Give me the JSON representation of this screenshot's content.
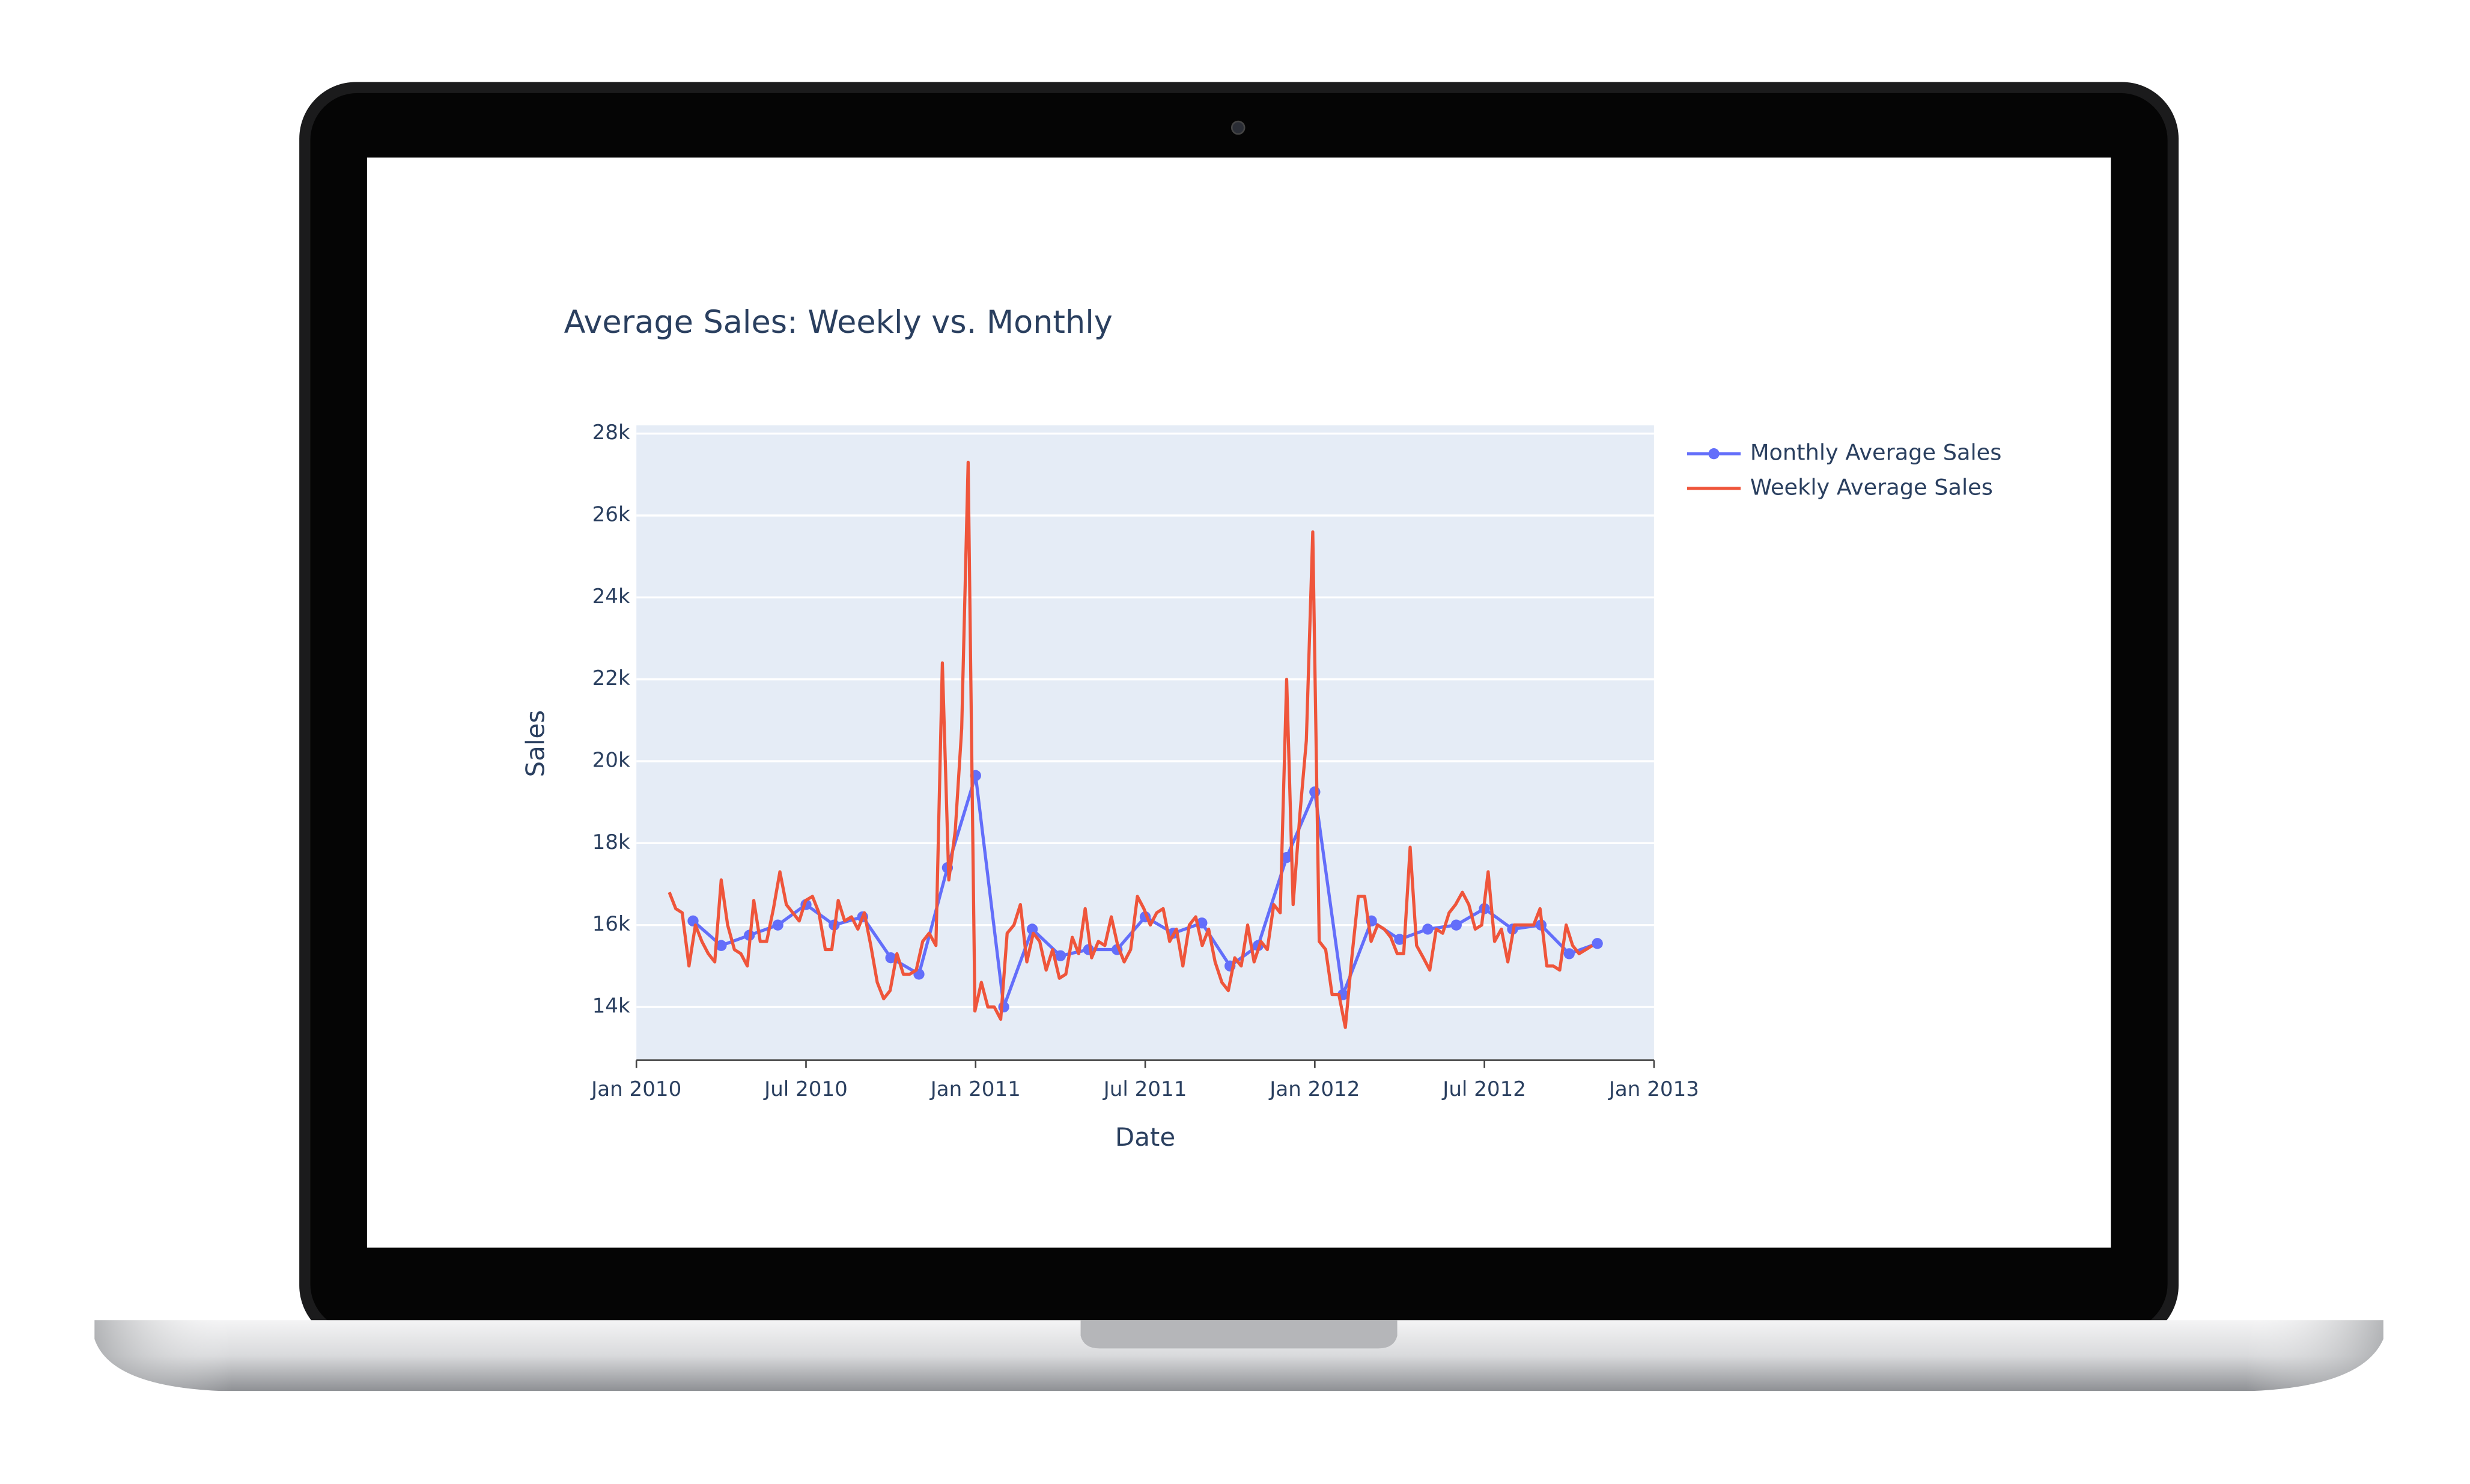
{
  "chart_data": {
    "type": "line",
    "title": "Average Sales: Weekly vs. Monthly",
    "x_label": "Date",
    "y_label": "Sales",
    "xlim": [
      2010,
      2013
    ],
    "xticks": [
      {
        "value": 2010,
        "label": "Jan 2010"
      },
      {
        "value": 2010.5,
        "label": "Jul 2010"
      },
      {
        "value": 2011,
        "label": "Jan 2011"
      },
      {
        "value": 2011.5,
        "label": "Jul 2011"
      },
      {
        "value": 2012,
        "label": "Jan 2012"
      },
      {
        "value": 2012.5,
        "label": "Jul 2012"
      },
      {
        "value": 2013,
        "label": "Jan 2013"
      }
    ],
    "ylim": [
      12700,
      28200
    ],
    "yticks": [
      {
        "value": 14000,
        "label": "14k"
      },
      {
        "value": 16000,
        "label": "16k"
      },
      {
        "value": 18000,
        "label": "18k"
      },
      {
        "value": 20000,
        "label": "20k"
      },
      {
        "value": 22000,
        "label": "22k"
      },
      {
        "value": 24000,
        "label": "24k"
      },
      {
        "value": 26000,
        "label": "26k"
      },
      {
        "value": 28000,
        "label": "28k"
      }
    ],
    "grid": true,
    "legend": "upper right",
    "series": [
      {
        "name": "Monthly Average Sales",
        "color": "#636efa",
        "markers": true,
        "x": [
          2010.167,
          2010.25,
          2010.333,
          2010.417,
          2010.5,
          2010.583,
          2010.667,
          2010.75,
          2010.833,
          2010.917,
          2011,
          2011.083,
          2011.167,
          2011.25,
          2011.333,
          2011.417,
          2011.5,
          2011.583,
          2011.667,
          2011.75,
          2011.833,
          2011.917,
          2012,
          2012.083,
          2012.167,
          2012.25,
          2012.333,
          2012.417,
          2012.5,
          2012.583,
          2012.667,
          2012.75,
          2012.833
        ],
        "values": [
          16100,
          15500,
          15750,
          16000,
          16500,
          16000,
          16200,
          15200,
          14800,
          17400,
          19650,
          14000,
          15900,
          15250,
          15400,
          15400,
          16200,
          15800,
          16050,
          15000,
          15500,
          17650,
          19250,
          14300,
          16100,
          15650,
          15900,
          16000,
          16400,
          15900,
          16000,
          15300,
          15550
        ]
      },
      {
        "name": "Weekly Average Sales",
        "color": "#ef553b",
        "x": [
          2010.097,
          2010.116,
          2010.135,
          2010.155,
          2010.174,
          2010.193,
          2010.212,
          2010.231,
          2010.25,
          2010.269,
          2010.289,
          2010.308,
          2010.327,
          2010.346,
          2010.365,
          2010.384,
          2010.404,
          2010.423,
          2010.442,
          2010.461,
          2010.48,
          2010.499,
          2010.519,
          2010.538,
          2010.557,
          2010.576,
          2010.595,
          2010.614,
          2010.634,
          2010.653,
          2010.672,
          2010.691,
          2010.71,
          2010.729,
          2010.748,
          2010.768,
          2010.787,
          2010.806,
          2010.825,
          2010.844,
          2010.863,
          2010.883,
          2010.902,
          2010.921,
          2010.94,
          2010.959,
          2010.978,
          2010.998,
          2011.017,
          2011.036,
          2011.055,
          2011.074,
          2011.093,
          2011.113,
          2011.132,
          2011.151,
          2011.17,
          2011.189,
          2011.208,
          2011.227,
          2011.247,
          2011.266,
          2011.285,
          2011.304,
          2011.323,
          2011.342,
          2011.362,
          2011.381,
          2011.4,
          2011.419,
          2011.438,
          2011.457,
          2011.477,
          2011.496,
          2011.515,
          2011.534,
          2011.553,
          2011.572,
          2011.592,
          2011.611,
          2011.63,
          2011.649,
          2011.668,
          2011.687,
          2011.706,
          2011.726,
          2011.745,
          2011.764,
          2011.783,
          2011.802,
          2011.821,
          2011.841,
          2011.86,
          2011.879,
          2011.898,
          2011.917,
          2011.936,
          2011.956,
          2011.975,
          2011.994,
          2012.013,
          2012.032,
          2012.051,
          2012.071,
          2012.09,
          2012.109,
          2012.128,
          2012.147,
          2012.166,
          2012.185,
          2012.205,
          2012.224,
          2012.243,
          2012.262,
          2012.281,
          2012.3,
          2012.32,
          2012.339,
          2012.358,
          2012.377,
          2012.396,
          2012.415,
          2012.435,
          2012.454,
          2012.473,
          2012.492,
          2012.511,
          2012.53,
          2012.55,
          2012.569,
          2012.588,
          2012.607,
          2012.626,
          2012.645,
          2012.664,
          2012.684,
          2012.703,
          2012.722,
          2012.741,
          2012.76,
          2012.779,
          2012.799,
          2012.818
        ],
        "values": [
          16800,
          16400,
          16300,
          15000,
          16000,
          15600,
          15300,
          15100,
          17100,
          16000,
          15400,
          15300,
          15000,
          16600,
          15600,
          15600,
          16400,
          17300,
          16500,
          16300,
          16100,
          16600,
          16700,
          16300,
          15400,
          15400,
          16600,
          16100,
          16200,
          15900,
          16300,
          15500,
          14600,
          14200,
          14400,
          15300,
          14800,
          14800,
          14900,
          15600,
          15800,
          15500,
          22400,
          17100,
          18300,
          20800,
          27300,
          13900,
          14600,
          14000,
          14000,
          13700,
          15800,
          16000,
          16500,
          15100,
          15800,
          15600,
          14900,
          15400,
          14700,
          14800,
          15700,
          15300,
          16400,
          15200,
          15600,
          15500,
          16200,
          15500,
          15100,
          15400,
          16700,
          16400,
          16000,
          16300,
          16400,
          15600,
          15900,
          15000,
          16000,
          16200,
          15500,
          15900,
          15100,
          14600,
          14400,
          15200,
          15000,
          16000,
          15100,
          15600,
          15400,
          16500,
          16300,
          22000,
          16500,
          18700,
          20500,
          25600,
          15600,
          15400,
          14300,
          14300,
          13500,
          15200,
          16700,
          16700,
          15600,
          16000,
          15900,
          15700,
          15300,
          15300,
          17900,
          15500,
          15200,
          14900,
          15900,
          15800,
          16300,
          16500,
          16800,
          16500,
          15900,
          16000,
          17300,
          15600,
          15900,
          15100,
          16000,
          16000,
          16000,
          16000,
          16400,
          15000,
          15000,
          14900,
          16000,
          15500,
          15300,
          15400,
          15500
        ]
      }
    ]
  }
}
